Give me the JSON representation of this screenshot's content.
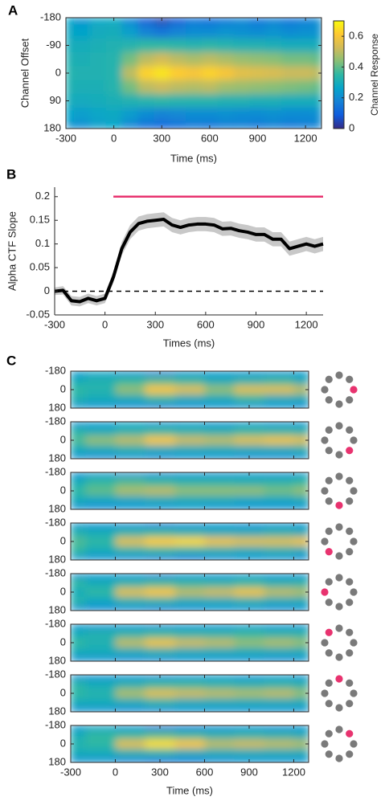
{
  "chart_data": [
    {
      "panel": "A",
      "type": "heatmap",
      "x": [
        -300,
        -200,
        -100,
        0,
        100,
        200,
        300,
        400,
        500,
        600,
        700,
        800,
        900,
        1000,
        1100,
        1200,
        1300
      ],
      "y": [
        -180,
        -135,
        -90,
        -45,
        0,
        45,
        90,
        135,
        180
      ],
      "values": [
        [
          0.26,
          0.22,
          0.27,
          0.28,
          0.18,
          0.08,
          0.04,
          0.08,
          0.14,
          0.12,
          0.15,
          0.18,
          0.14,
          0.17,
          0.14,
          0.16,
          0.2
        ],
        [
          0.28,
          0.26,
          0.29,
          0.3,
          0.25,
          0.18,
          0.15,
          0.18,
          0.2,
          0.2,
          0.22,
          0.21,
          0.2,
          0.22,
          0.2,
          0.21,
          0.22
        ],
        [
          0.3,
          0.3,
          0.31,
          0.32,
          0.33,
          0.35,
          0.35,
          0.34,
          0.33,
          0.34,
          0.33,
          0.32,
          0.32,
          0.31,
          0.3,
          0.3,
          0.3
        ],
        [
          0.32,
          0.31,
          0.32,
          0.33,
          0.42,
          0.5,
          0.53,
          0.5,
          0.48,
          0.5,
          0.48,
          0.46,
          0.45,
          0.44,
          0.42,
          0.42,
          0.4
        ],
        [
          0.33,
          0.32,
          0.32,
          0.33,
          0.5,
          0.63,
          0.66,
          0.62,
          0.6,
          0.63,
          0.6,
          0.56,
          0.55,
          0.54,
          0.52,
          0.52,
          0.5
        ],
        [
          0.32,
          0.31,
          0.31,
          0.33,
          0.42,
          0.5,
          0.52,
          0.5,
          0.49,
          0.5,
          0.47,
          0.46,
          0.45,
          0.44,
          0.43,
          0.42,
          0.4
        ],
        [
          0.3,
          0.29,
          0.3,
          0.31,
          0.32,
          0.33,
          0.34,
          0.33,
          0.33,
          0.33,
          0.32,
          0.32,
          0.31,
          0.31,
          0.3,
          0.3,
          0.3
        ],
        [
          0.26,
          0.25,
          0.27,
          0.28,
          0.24,
          0.2,
          0.18,
          0.19,
          0.2,
          0.2,
          0.21,
          0.2,
          0.2,
          0.21,
          0.2,
          0.2,
          0.21
        ],
        [
          0.22,
          0.2,
          0.25,
          0.26,
          0.18,
          0.12,
          0.1,
          0.12,
          0.15,
          0.14,
          0.16,
          0.17,
          0.15,
          0.17,
          0.15,
          0.16,
          0.18
        ]
      ],
      "xlim": [
        -300,
        1300
      ],
      "ylim": [
        180,
        -180
      ],
      "xticks": [
        -300,
        0,
        300,
        600,
        900,
        1200
      ],
      "yticks": [
        -180,
        -90,
        0,
        90,
        180
      ],
      "xlabel": "Time (ms)",
      "ylabel": "Channel Offset",
      "clim": [
        0,
        0.7
      ],
      "colorbar_ticks": [
        0,
        0.2,
        0.4,
        0.6
      ],
      "colorbar_label": "Channel Response",
      "colormap": [
        "#352a87",
        "#0f5cdd",
        "#1481d6",
        "#06a4ca",
        "#2eb7a4",
        "#87bf77",
        "#d1bb59",
        "#fec832",
        "#f9fb0e"
      ]
    },
    {
      "panel": "B",
      "type": "line",
      "x": [
        -300,
        -250,
        -200,
        -150,
        -100,
        -50,
        0,
        50,
        100,
        150,
        200,
        250,
        300,
        350,
        400,
        450,
        500,
        550,
        600,
        650,
        700,
        750,
        800,
        850,
        900,
        950,
        1000,
        1050,
        1100,
        1150,
        1200,
        1250,
        1300
      ],
      "series": [
        {
          "color": "#000000",
          "band_color": "#c8c8c8",
          "values": [
            0,
            0.002,
            -0.02,
            -0.022,
            -0.015,
            -0.02,
            -0.015,
            0.03,
            0.09,
            0.125,
            0.143,
            0.148,
            0.15,
            0.152,
            0.14,
            0.135,
            0.14,
            0.142,
            0.142,
            0.14,
            0.132,
            0.133,
            0.128,
            0.125,
            0.12,
            0.12,
            0.11,
            0.11,
            0.09,
            0.095,
            0.1,
            0.095,
            0.1
          ],
          "error": [
            0.008,
            0.009,
            0.01,
            0.01,
            0.01,
            0.01,
            0.01,
            0.012,
            0.014,
            0.015,
            0.015,
            0.015,
            0.015,
            0.015,
            0.015,
            0.015,
            0.015,
            0.015,
            0.015,
            0.015,
            0.015,
            0.015,
            0.015,
            0.015,
            0.015,
            0.015,
            0.015,
            0.015,
            0.015,
            0.015,
            0.015,
            0.015,
            0.015
          ]
        }
      ],
      "significance": {
        "x": [
          50,
          1300
        ],
        "y": 0.2,
        "color": "#e8336f"
      },
      "hline": 0,
      "xlim": [
        -300,
        1300
      ],
      "ylim": [
        -0.05,
        0.22
      ],
      "xticks": [
        -300,
        0,
        300,
        600,
        900,
        1200
      ],
      "yticks": [
        -0.05,
        0,
        0.05,
        0.1,
        0.15,
        0.2
      ],
      "xlabel": "Times (ms)",
      "ylabel": "Alpha CTF Slope"
    },
    {
      "panel": "C",
      "type": "heatmap-stack",
      "x": [
        -300,
        -100,
        100,
        300,
        500,
        700,
        900,
        1100,
        1300
      ],
      "y": [
        -180,
        -90,
        0,
        90,
        180
      ],
      "panels": [
        [
          [
            0.22,
            0.25,
            0.2,
            0.15,
            0.2,
            0.22,
            0.2,
            0.2,
            0.22
          ],
          [
            0.3,
            0.32,
            0.35,
            0.38,
            0.35,
            0.3,
            0.33,
            0.35,
            0.3
          ],
          [
            0.35,
            0.33,
            0.45,
            0.6,
            0.55,
            0.45,
            0.55,
            0.55,
            0.5
          ],
          [
            0.32,
            0.3,
            0.3,
            0.35,
            0.3,
            0.3,
            0.35,
            0.3,
            0.3
          ],
          [
            0.22,
            0.2,
            0.18,
            0.15,
            0.18,
            0.2,
            0.2,
            0.2,
            0.18
          ]
        ],
        [
          [
            0.2,
            0.22,
            0.25,
            0.2,
            0.22,
            0.2,
            0.22,
            0.2,
            0.2
          ],
          [
            0.33,
            0.3,
            0.33,
            0.35,
            0.33,
            0.32,
            0.35,
            0.34,
            0.33
          ],
          [
            0.38,
            0.45,
            0.5,
            0.6,
            0.52,
            0.5,
            0.55,
            0.58,
            0.55
          ],
          [
            0.3,
            0.3,
            0.32,
            0.3,
            0.3,
            0.3,
            0.3,
            0.3,
            0.32
          ],
          [
            0.2,
            0.18,
            0.2,
            0.18,
            0.2,
            0.2,
            0.18,
            0.18,
            0.2
          ]
        ],
        [
          [
            0.2,
            0.22,
            0.2,
            0.18,
            0.2,
            0.2,
            0.22,
            0.2,
            0.22
          ],
          [
            0.3,
            0.35,
            0.38,
            0.35,
            0.33,
            0.33,
            0.32,
            0.33,
            0.35
          ],
          [
            0.35,
            0.4,
            0.48,
            0.5,
            0.45,
            0.45,
            0.45,
            0.42,
            0.45
          ],
          [
            0.3,
            0.28,
            0.28,
            0.3,
            0.3,
            0.3,
            0.28,
            0.28,
            0.3
          ],
          [
            0.2,
            0.18,
            0.2,
            0.2,
            0.22,
            0.2,
            0.2,
            0.2,
            0.2
          ]
        ],
        [
          [
            0.22,
            0.2,
            0.18,
            0.12,
            0.18,
            0.2,
            0.18,
            0.2,
            0.2
          ],
          [
            0.32,
            0.3,
            0.33,
            0.35,
            0.32,
            0.3,
            0.3,
            0.32,
            0.3
          ],
          [
            0.38,
            0.35,
            0.55,
            0.62,
            0.64,
            0.58,
            0.55,
            0.55,
            0.58
          ],
          [
            0.35,
            0.3,
            0.33,
            0.35,
            0.33,
            0.32,
            0.3,
            0.32,
            0.3
          ],
          [
            0.22,
            0.2,
            0.18,
            0.15,
            0.12,
            0.18,
            0.2,
            0.2,
            0.18
          ]
        ],
        [
          [
            0.2,
            0.22,
            0.2,
            0.15,
            0.2,
            0.2,
            0.22,
            0.2,
            0.2
          ],
          [
            0.35,
            0.3,
            0.33,
            0.36,
            0.34,
            0.33,
            0.35,
            0.32,
            0.33
          ],
          [
            0.3,
            0.35,
            0.55,
            0.6,
            0.5,
            0.52,
            0.58,
            0.5,
            0.48
          ],
          [
            0.33,
            0.28,
            0.32,
            0.33,
            0.3,
            0.3,
            0.32,
            0.3,
            0.3
          ],
          [
            0.2,
            0.18,
            0.18,
            0.15,
            0.18,
            0.2,
            0.2,
            0.18,
            0.2
          ]
        ],
        [
          [
            0.22,
            0.2,
            0.2,
            0.18,
            0.2,
            0.2,
            0.22,
            0.2,
            0.2
          ],
          [
            0.3,
            0.32,
            0.33,
            0.35,
            0.33,
            0.33,
            0.35,
            0.33,
            0.33
          ],
          [
            0.35,
            0.32,
            0.5,
            0.58,
            0.52,
            0.5,
            0.45,
            0.48,
            0.45
          ],
          [
            0.3,
            0.3,
            0.3,
            0.32,
            0.3,
            0.3,
            0.3,
            0.3,
            0.3
          ],
          [
            0.2,
            0.2,
            0.18,
            0.18,
            0.2,
            0.2,
            0.2,
            0.18,
            0.2
          ]
        ],
        [
          [
            0.2,
            0.2,
            0.2,
            0.18,
            0.2,
            0.22,
            0.2,
            0.22,
            0.2
          ],
          [
            0.33,
            0.3,
            0.32,
            0.35,
            0.35,
            0.33,
            0.32,
            0.33,
            0.32
          ],
          [
            0.35,
            0.33,
            0.48,
            0.55,
            0.52,
            0.5,
            0.48,
            0.5,
            0.45
          ],
          [
            0.3,
            0.3,
            0.3,
            0.33,
            0.3,
            0.3,
            0.3,
            0.3,
            0.3
          ],
          [
            0.2,
            0.2,
            0.18,
            0.18,
            0.2,
            0.2,
            0.2,
            0.2,
            0.2
          ]
        ],
        [
          [
            0.22,
            0.25,
            0.2,
            0.1,
            0.12,
            0.18,
            0.2,
            0.18,
            0.2
          ],
          [
            0.3,
            0.35,
            0.35,
            0.38,
            0.35,
            0.32,
            0.33,
            0.32,
            0.3
          ],
          [
            0.33,
            0.35,
            0.55,
            0.65,
            0.6,
            0.5,
            0.52,
            0.5,
            0.48
          ],
          [
            0.3,
            0.3,
            0.32,
            0.33,
            0.3,
            0.3,
            0.3,
            0.3,
            0.3
          ],
          [
            0.2,
            0.2,
            0.15,
            0.1,
            0.12,
            0.18,
            0.2,
            0.2,
            0.2
          ]
        ]
      ],
      "xlim": [
        -300,
        1300
      ],
      "ylim": [
        180,
        -180
      ],
      "xticks": [
        -300,
        0,
        300,
        600,
        900,
        1200
      ],
      "yticks": [
        -180,
        0,
        180
      ],
      "xlabel": "Time (ms)"
    }
  ]
}
